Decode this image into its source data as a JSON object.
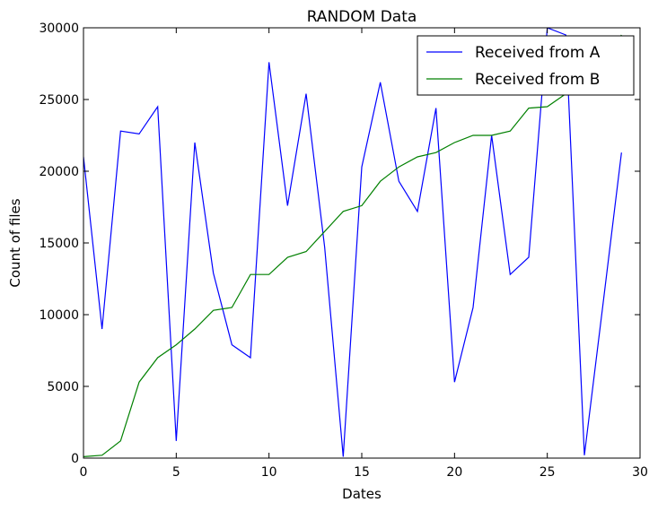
{
  "chart_data": {
    "type": "line",
    "title": "RANDOM Data",
    "xlabel": "Dates",
    "ylabel": "Count of files",
    "xlim": [
      0,
      30
    ],
    "ylim": [
      0,
      30000
    ],
    "xticks": [
      0,
      5,
      10,
      15,
      20,
      25,
      30
    ],
    "yticks": [
      0,
      5000,
      10000,
      15000,
      20000,
      25000,
      30000
    ],
    "grid": false,
    "legend_position": "top-right",
    "x": [
      0,
      1,
      2,
      3,
      4,
      5,
      6,
      7,
      8,
      9,
      10,
      11,
      12,
      13,
      14,
      15,
      16,
      17,
      18,
      19,
      20,
      21,
      22,
      23,
      24,
      25,
      26,
      27,
      28,
      29
    ],
    "series": [
      {
        "name": "Received from A",
        "color": "#0000ff",
        "values": [
          21000,
          9000,
          22800,
          22600,
          24500,
          1200,
          22000,
          12900,
          7900,
          7000,
          27600,
          17600,
          25400,
          14700,
          100,
          20300,
          26200,
          19300,
          17200,
          24400,
          5300,
          10500,
          22500,
          12800,
          14000,
          30000,
          29500,
          200,
          10700,
          21300
        ]
      },
      {
        "name": "Received from B",
        "color": "#008000",
        "values": [
          100,
          200,
          1200,
          5300,
          7000,
          7900,
          9000,
          10300,
          10500,
          12800,
          12800,
          14000,
          14400,
          15800,
          17200,
          17600,
          19300,
          20300,
          21000,
          21300,
          22000,
          22500,
          22500,
          22800,
          24400,
          24500,
          25400,
          26200,
          27600,
          29500
        ]
      }
    ]
  }
}
